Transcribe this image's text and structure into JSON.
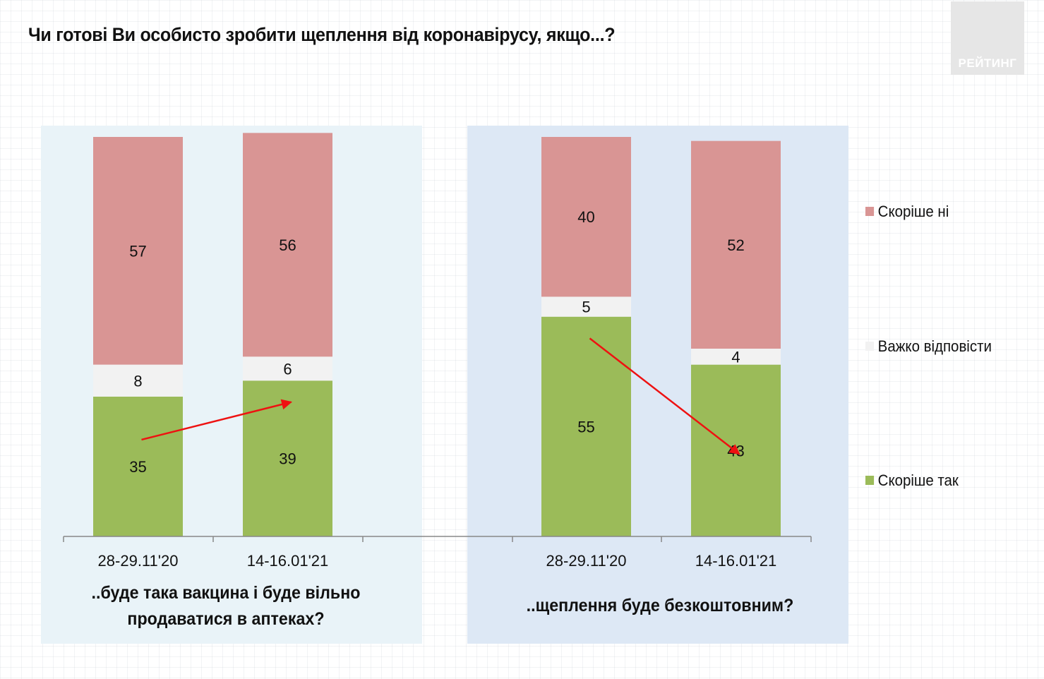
{
  "title": "Чи готові Ви особисто зробити щеплення від коронавірусу, якщо...?",
  "logo": "РЕЙТИНГ",
  "colors": {
    "no": "#d99594",
    "hard": "#f2f2f2",
    "yes": "#9bbb59",
    "arrow": "#ee1111"
  },
  "subtitles": {
    "left": "..буде така вакцина і буде вільно продаватися в аптеках?",
    "right": "..щеплення буде безкоштовним?"
  },
  "legend": [
    {
      "label": "Скоріше  ні",
      "color_key": "no"
    },
    {
      "label": "Важко відповісти",
      "color_key": "hard"
    },
    {
      "label": "Скоріше  так",
      "color_key": "yes"
    }
  ],
  "chart_data": {
    "type": "bar",
    "stacked": true,
    "categories": [
      "28-29.11'20",
      "14-16.01'21",
      "28-29.11'20",
      "14-16.01'21"
    ],
    "groups": [
      "..буде така вакцина і буде вільно продаватися в аптеках?",
      "..щеплення буде безкоштовним?"
    ],
    "series": [
      {
        "name": "Скоріше  так",
        "values": [
          35,
          39,
          55,
          43
        ]
      },
      {
        "name": "Важко відповісти",
        "values": [
          8,
          6,
          5,
          4
        ]
      },
      {
        "name": "Скоріше  ні",
        "values": [
          57,
          56,
          40,
          52
        ]
      }
    ],
    "ylim": [
      0,
      100
    ],
    "legend_position": "right",
    "arrows": [
      {
        "from_category": 0,
        "to_category": 1,
        "direction": "up"
      },
      {
        "from_category": 2,
        "to_category": 3,
        "direction": "down"
      }
    ]
  }
}
